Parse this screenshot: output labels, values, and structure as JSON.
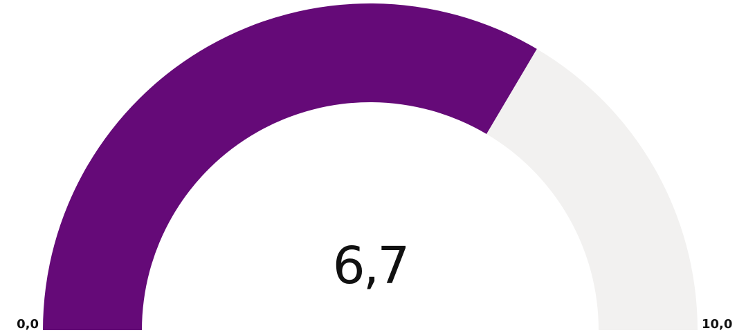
{
  "chart_data": {
    "type": "gauge",
    "values": [
      6.7
    ],
    "value_labels": [
      "6,7"
    ],
    "ylim": [
      0,
      10
    ],
    "yticks": [
      {
        "value": 0,
        "label": "0,0"
      },
      {
        "value": 10,
        "label": "10,0"
      }
    ],
    "color": "#650a78",
    "track_color": "#f2f1f0"
  }
}
